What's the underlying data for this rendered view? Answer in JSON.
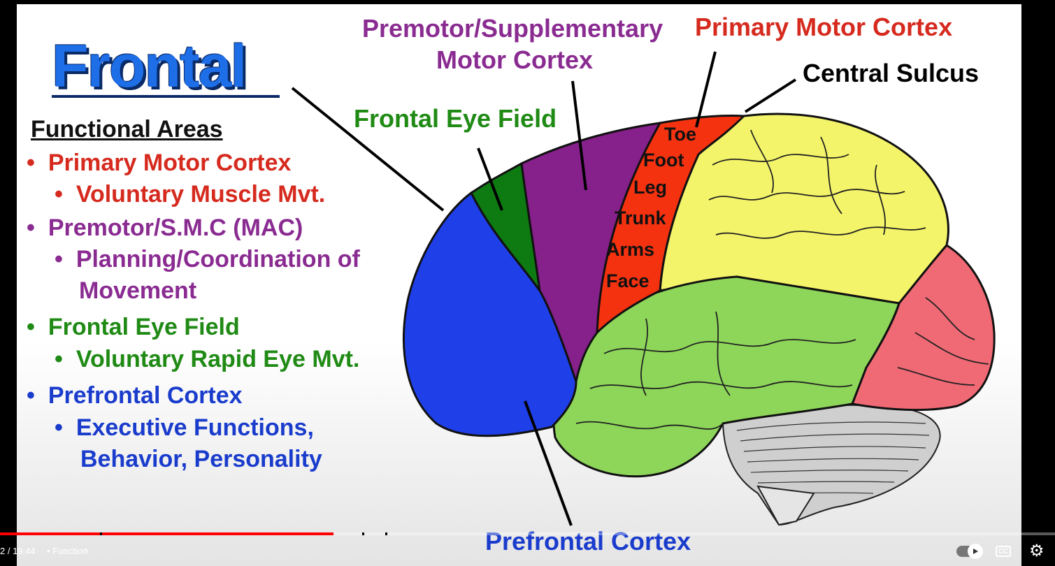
{
  "slide": {
    "title": "Frontal",
    "functional_areas": "Functional Areas",
    "bullet": "•",
    "items": [
      {
        "text": "Primary Motor Cortex",
        "color": "#d62a1e"
      },
      {
        "text": "Voluntary Muscle Mvt.",
        "color": "#d62a1e"
      },
      {
        "text": "Premotor/S.M.C (MAC)",
        "color": "#8a2b91"
      },
      {
        "text": "Planning/Coordination of",
        "color": "#8a2b91"
      },
      {
        "text": "Movement",
        "color": "#8a2b91"
      },
      {
        "text": "Frontal Eye Field",
        "color": "#1f8a14"
      },
      {
        "text": "Voluntary Rapid Eye Mvt.",
        "color": "#1f8a14"
      },
      {
        "text": "Prefrontal Cortex",
        "color": "#1a3ccc"
      },
      {
        "text": "Executive Functions,",
        "color": "#1a3ccc"
      },
      {
        "text": "Behavior, Personality",
        "color": "#1a3ccc"
      }
    ],
    "labels": {
      "premotor_line1": "Premotor/Supplementary",
      "premotor_line2": "Motor Cortex",
      "primary_motor": "Primary Motor Cortex",
      "central_sulcus": "Central Sulcus",
      "frontal_eye_field": "Frontal Eye Field",
      "prefrontal": "Prefrontal Cortex"
    },
    "homunculus": [
      "Toe",
      "Foot",
      "Leg",
      "Trunk",
      "Arms",
      "Face"
    ]
  },
  "player": {
    "time": "2 / 19:44",
    "separator": "•",
    "chapter": "Function",
    "cc_label": "CC",
    "progress_fraction": 0.316
  },
  "colors": {
    "prefrontal": "#1f3fe8",
    "frontal_eye": "#0e7a12",
    "premotor": "#86208a",
    "primary_motor": "#f43210",
    "parietal": "#f4f46a",
    "temporal": "#8ed65a",
    "occipital": "#ef6a74",
    "cerebellum": "#cfcfcf"
  },
  "icons": [
    "chevron-right-icon",
    "autoplay-toggle-icon",
    "captions-icon",
    "settings-gear-icon"
  ]
}
